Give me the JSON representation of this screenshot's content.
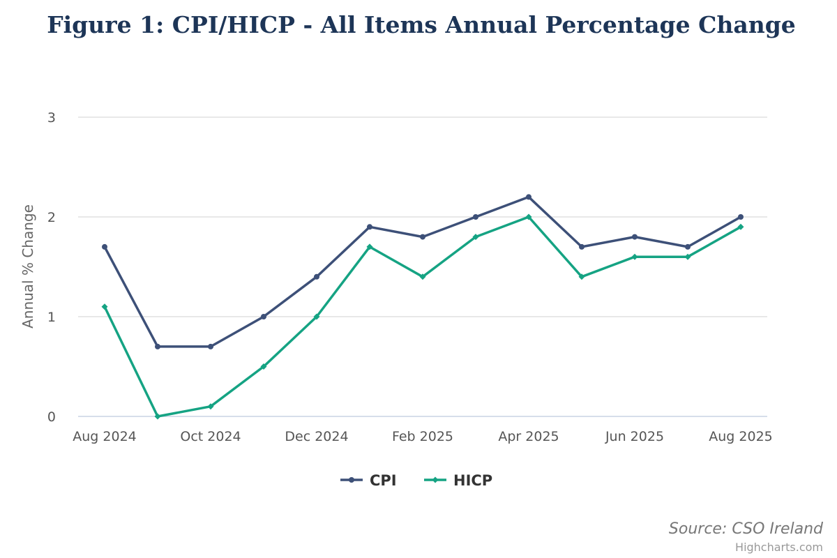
{
  "chart_data": {
    "type": "line",
    "title": "Figure 1: CPI/HICP - All Items Annual Percentage Change",
    "ylabel": "Annual % Change",
    "xlabel": "",
    "ylim": [
      0,
      3
    ],
    "yticks": [
      "0",
      "1",
      "2",
      "3"
    ],
    "grid": true,
    "legend_position": "bottom-center",
    "x": [
      "Aug 2024",
      "Sep 2024",
      "Oct 2024",
      "Nov 2024",
      "Dec 2024",
      "Jan 2025",
      "Feb 2025",
      "Mar 2025",
      "Apr 2025",
      "May 2025",
      "Jun 2025",
      "Jul 2025",
      "Aug 2025"
    ],
    "xtick_labels": [
      "Aug 2024",
      "",
      "Oct 2024",
      "",
      "Dec 2024",
      "",
      "Feb 2025",
      "",
      "Apr 2025",
      "",
      "Jun 2025",
      "",
      "Aug 2025"
    ],
    "series": [
      {
        "name": "CPI",
        "color": "#3d5078",
        "marker": "circle",
        "values": [
          1.7,
          0.7,
          0.7,
          1.0,
          1.4,
          1.9,
          1.8,
          2.0,
          2.2,
          1.7,
          1.8,
          1.7,
          2.0
        ]
      },
      {
        "name": "HICP",
        "color": "#15a383",
        "marker": "diamond",
        "values": [
          1.1,
          0.0,
          0.1,
          0.5,
          1.0,
          1.7,
          1.4,
          1.8,
          2.0,
          1.4,
          1.6,
          1.6,
          1.9
        ]
      }
    ],
    "source": "Source: CSO Ireland",
    "credits": "Highcharts.com"
  }
}
